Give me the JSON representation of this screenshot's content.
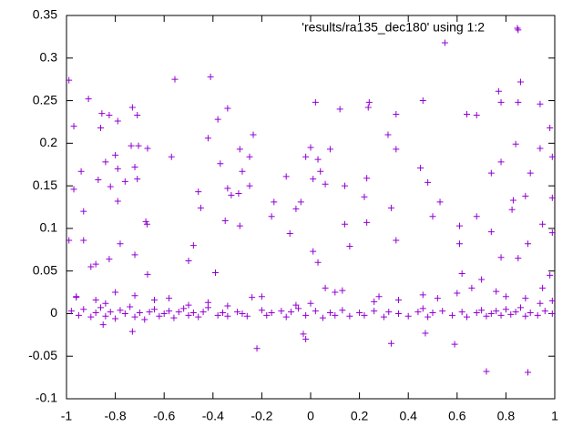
{
  "chart_data": {
    "type": "scatter",
    "xlim": [
      -1,
      1
    ],
    "xticks": [
      -1,
      -0.8,
      -0.6,
      -0.4,
      -0.2,
      0,
      0.2,
      0.4,
      0.6,
      0.8,
      1
    ],
    "ylim": [
      -0.1,
      0.35
    ],
    "yticks": [
      -0.1,
      -0.05,
      0,
      0.05,
      0.1,
      0.15,
      0.2,
      0.25,
      0.3,
      0.35
    ],
    "grid": false,
    "legend": "top-right",
    "x": [
      -0.99,
      -0.97,
      -0.91,
      -0.94,
      -0.97,
      -0.93,
      -0.99,
      -0.93,
      -0.88,
      -0.9,
      -0.96,
      -0.855,
      -0.825,
      -0.79,
      -0.86,
      -0.84,
      -0.8,
      -0.79,
      -0.87,
      -0.82,
      -0.79,
      -0.76,
      -0.735,
      -0.705,
      -0.73,
      -0.71,
      -0.72,
      -0.71,
      -0.675,
      -0.67,
      -0.668,
      -0.78,
      -0.825,
      -0.72,
      -0.668,
      -0.556,
      -0.57,
      -0.41,
      -0.42,
      -0.38,
      -0.37,
      -0.34,
      -0.46,
      -0.45,
      -0.35,
      -0.48,
      -0.5,
      -0.39,
      -0.34,
      -0.325,
      -0.295,
      -0.29,
      -0.28,
      -0.25,
      -0.235,
      -0.29,
      -0.25,
      -0.15,
      -0.16,
      -0.1,
      -0.085,
      -0.04,
      -0.06,
      0.01,
      0,
      0.02,
      0.04,
      0.03,
      0.06,
      -0.02,
      0.01,
      0.03,
      0.12,
      0.08,
      0.14,
      0.14,
      0.16,
      0.236,
      0.23,
      0.22,
      0.23,
      0.24,
      0.317,
      0.35,
      0.35,
      0.33,
      0.35,
      0.45,
      0.46,
      0.48,
      0.5,
      0.53,
      0.55,
      0.64,
      0.68,
      0.68,
      0.77,
      0.78,
      0.85,
      0.86,
      0.84,
      0.94,
      0.85,
      0.9,
      0.98,
      0.94,
      0.99,
      0.74,
      0.78,
      0.88,
      0.99,
      0.95,
      0.99,
      0.89,
      0.85,
      0.98,
      0.78,
      0.74,
      0.61,
      0.62,
      0.61,
      0.825,
      0.83,
      0.95,
      0.99,
      -0.85,
      -0.73,
      -0.22,
      -0.03,
      -0.02,
      0.33,
      0.47,
      0.59,
      0.72,
      0.89,
      -0.98,
      -0.95,
      -0.93,
      -0.9,
      -0.88,
      -0.86,
      -0.84,
      -0.82,
      -0.8,
      -0.78,
      -0.76,
      -0.74,
      -0.72,
      -0.7,
      -0.68,
      -0.66,
      -0.64,
      -0.62,
      -0.6,
      -0.58,
      -0.56,
      -0.54,
      -0.52,
      -0.5,
      -0.48,
      -0.46,
      -0.44,
      -0.42,
      -0.38,
      -0.36,
      -0.34,
      -0.3,
      -0.28,
      -0.26,
      -0.2,
      -0.18,
      -0.16,
      -0.12,
      -0.1,
      -0.08,
      -0.05,
      -0.02,
      0.02,
      0.05,
      0.08,
      0.1,
      0.13,
      0.16,
      0.2,
      0.22,
      0.26,
      0.3,
      0.32,
      0.36,
      0.4,
      0.44,
      0.46,
      0.48,
      0.5,
      0.54,
      0.58,
      0.62,
      0.64,
      0.68,
      0.7,
      0.72,
      0.74,
      0.76,
      0.78,
      0.8,
      0.82,
      0.84,
      0.86,
      0.88,
      0.9,
      0.93,
      0.96,
      0.99,
      -0.96,
      -0.88,
      -0.84,
      -0.8,
      -0.72,
      -0.64,
      -0.58,
      -0.5,
      -0.42,
      -0.34,
      -0.24,
      -0.2,
      -0.06,
      0,
      0.06,
      0.1,
      0.13,
      0.26,
      0.28,
      0.36,
      0.46,
      0.52,
      0.6,
      0.66,
      0.7,
      0.76,
      0.8,
      0.88,
      0.94
    ],
    "series": [
      {
        "name": "'results/ra135_dec180' using 1:2",
        "color": "#9400d3",
        "values": [
          0.274,
          0.22,
          0.252,
          0.167,
          0.146,
          0.12,
          0.086,
          0.086,
          0.058,
          0.055,
          0.019,
          0.235,
          0.233,
          0.226,
          0.218,
          0.178,
          0.186,
          0.17,
          0.157,
          0.149,
          0.132,
          0.155,
          0.197,
          0.197,
          0.242,
          0.233,
          0.172,
          0.158,
          0.108,
          0.105,
          0.194,
          0.082,
          0.064,
          0.069,
          0.046,
          0.275,
          0.184,
          0.278,
          0.206,
          0.228,
          0.176,
          0.241,
          0.143,
          0.124,
          0.109,
          0.08,
          0.062,
          0.048,
          0.147,
          0.139,
          0.141,
          0.193,
          0.167,
          0.184,
          0.21,
          0.103,
          0.15,
          0.131,
          0.114,
          0.161,
          0.094,
          0.131,
          0.123,
          0.158,
          0.195,
          0.248,
          0.167,
          0.181,
          0.152,
          0.184,
          0.073,
          0.06,
          0.24,
          0.193,
          0.15,
          0.105,
          0.079,
          0.242,
          0.159,
          0.137,
          0.107,
          0.248,
          0.21,
          0.234,
          0.193,
          0.124,
          0.086,
          0.171,
          0.25,
          0.154,
          0.114,
          0.131,
          0.318,
          0.234,
          0.233,
          0.114,
          0.261,
          0.248,
          0.333,
          0.272,
          0.199,
          0.246,
          0.248,
          0.165,
          0.218,
          0.194,
          0.184,
          0.165,
          0.178,
          0.138,
          0.136,
          0.105,
          0.095,
          0.082,
          0.065,
          0.045,
          0.066,
          0.096,
          0.082,
          0.047,
          0.103,
          0.122,
          0.133,
          0.03,
          0.015,
          -0.013,
          -0.021,
          -0.041,
          -0.024,
          -0.03,
          -0.035,
          -0.023,
          -0.036,
          -0.068,
          -0.069,
          0.003,
          -0.002,
          0.005,
          -0.004,
          0.001,
          0.007,
          -0.003,
          0.002,
          -0.006,
          0.004,
          0,
          0.008,
          -0.004,
          0.001,
          -0.007,
          0.002,
          0.005,
          -0.003,
          0,
          0.003,
          -0.005,
          0.002,
          0.006,
          -0.002,
          0.001,
          -0.004,
          0.002,
          0.007,
          -0.002,
          0.001,
          -0.003,
          0.002,
          0,
          -0.003,
          0.004,
          -0.002,
          0.001,
          0.003,
          -0.004,
          0.002,
          0.006,
          -0.002,
          0.003,
          -0.005,
          0.001,
          -0.002,
          0.004,
          -0.003,
          0.001,
          -0.002,
          0.003,
          -0.004,
          0.002,
          0,
          -0.003,
          0.002,
          0.006,
          -0.004,
          0.001,
          0.003,
          -0.002,
          0.002,
          -0.004,
          0.001,
          0.004,
          -0.003,
          0,
          0.003,
          -0.002,
          0.005,
          -0.001,
          0.002,
          0.007,
          -0.003,
          0.001,
          -0.002,
          0.003,
          0,
          0.02,
          0.016,
          0.012,
          0.025,
          0.021,
          0.016,
          0.018,
          0.01,
          0.013,
          0.009,
          0.019,
          0.02,
          0.01,
          0.012,
          0.03,
          0.025,
          0.027,
          0.014,
          0.02,
          0.016,
          0.022,
          0.018,
          0.024,
          0.03,
          0.04,
          0.026,
          0.02,
          0.018,
          0.012
        ]
      }
    ]
  }
}
